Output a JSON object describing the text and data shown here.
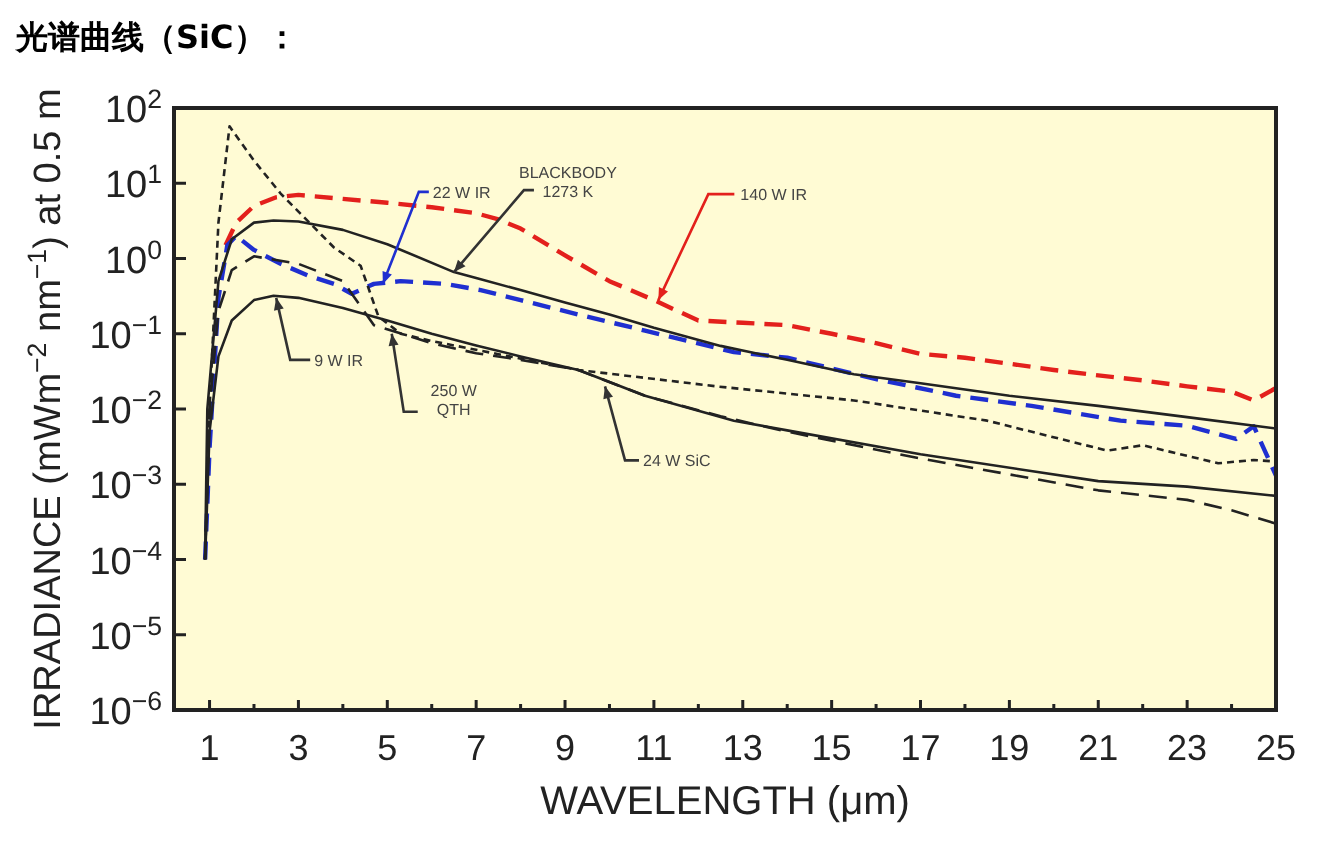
{
  "chart_data": {
    "type": "line",
    "title": "光谱曲线（SiC）：",
    "xlabel": "WAVELENGTH (μm)",
    "ylabel": "IRRADIANCE (mWm$^{−2}$ nm$^{−1}$) at 0.5 m",
    "log": "y",
    "xlim": [
      0.2,
      25
    ],
    "ylim": [
      1e-06,
      100
    ],
    "xticks": [
      1,
      {
        "value": 2,
        "label": null
      },
      3,
      {
        "value": 4,
        "label": null
      },
      5,
      {
        "value": 6,
        "label": null
      },
      7,
      {
        "value": 8,
        "label": null
      },
      9,
      {
        "value": 10,
        "label": null
      },
      11,
      {
        "value": 12,
        "label": null
      },
      13,
      {
        "value": 14,
        "label": null
      },
      15,
      {
        "value": 16,
        "label": null
      },
      17,
      {
        "value": 18,
        "label": null
      },
      19,
      {
        "value": 20,
        "label": null
      },
      21,
      {
        "value": 22,
        "label": null
      },
      23,
      {
        "value": 24,
        "label": null
      },
      25
    ],
    "yticks": [
      {
        "value": 1e-06,
        "label": "10$^{−6}$"
      },
      {
        "value": 1e-05,
        "label": "10$^{−5}$"
      },
      {
        "value": 0.0001,
        "label": "10$^{−4}$"
      },
      {
        "value": 0.001,
        "label": "10$^{−3}$"
      },
      {
        "value": 0.01,
        "label": "10$^{−2}$"
      },
      {
        "value": 0.1,
        "label": "10$^{−1}$"
      },
      {
        "value": 1,
        "label": "10$^{0}$"
      },
      {
        "value": 10,
        "label": "10$^{1}$"
      },
      {
        "value": 100,
        "label": "10$^{2}$"
      }
    ],
    "series": [
      {
        "color": "#e3201c",
        "line_style": "dashed",
        "x": [
          1.36,
          1.6,
          2,
          2.5,
          3,
          4,
          5,
          6,
          7,
          7.5,
          8,
          9,
          10,
          11,
          12,
          13,
          14,
          15,
          16,
          17,
          18,
          19,
          20,
          21,
          22,
          23,
          24,
          24.5,
          25
        ],
        "values": [
          1.5,
          3,
          5,
          6.5,
          7,
          6.2,
          5.5,
          4.8,
          4,
          3.3,
          2.5,
          1.1,
          0.5,
          0.28,
          0.15,
          0.14,
          0.13,
          0.1,
          0.075,
          0.054,
          0.048,
          0.04,
          0.033,
          0.028,
          0.024,
          0.02,
          0.017,
          0.013,
          0.019
        ]
      },
      {
        "color": "#1f2fd0",
        "line_style": "dashed",
        "x": [
          0.9,
          1.0,
          1.2,
          1.4,
          1.6,
          2,
          2.6,
          3.2,
          3.8,
          4.2,
          4.7,
          5.3,
          6.3,
          7.1,
          8,
          9.3,
          10.8,
          12.8,
          14,
          16,
          17.8,
          19.5,
          21.5,
          23,
          24.1,
          24.5,
          25
        ],
        "values": [
          0.0001,
          0.003,
          0.3,
          1.5,
          2,
          1.3,
          0.85,
          0.6,
          0.46,
          0.34,
          0.46,
          0.5,
          0.46,
          0.38,
          0.28,
          0.18,
          0.11,
          0.057,
          0.048,
          0.025,
          0.015,
          0.011,
          0.007,
          0.006,
          0.004,
          0.0059,
          0.0013
        ]
      },
      {
        "color": "#222222",
        "line_style": "solid",
        "x": [
          0.9,
          0.95,
          1.2,
          1.5,
          2,
          2.44,
          3,
          4,
          5,
          6.5,
          7,
          8,
          9,
          10,
          11,
          12.5,
          14,
          15.5,
          17,
          19,
          21,
          23,
          25
        ],
        "values": [
          0.0001,
          0.01,
          0.5,
          1.8,
          3,
          3.2,
          3.1,
          2.4,
          1.55,
          0.66,
          0.55,
          0.38,
          0.26,
          0.18,
          0.12,
          0.069,
          0.045,
          0.029,
          0.022,
          0.015,
          0.011,
          0.0078,
          0.0055
        ]
      },
      {
        "color": "#222222",
        "line_style": "solid",
        "x": [
          0.9,
          1.0,
          1.2,
          1.5,
          2,
          2.44,
          3,
          4,
          5,
          6,
          7,
          8,
          9.3,
          10.8,
          12.8,
          14,
          17,
          21,
          23,
          25
        ],
        "values": [
          0.0001,
          0.005,
          0.05,
          0.15,
          0.28,
          0.32,
          0.3,
          0.22,
          0.15,
          0.1,
          0.07,
          0.05,
          0.033,
          0.015,
          0.007,
          0.0052,
          0.0025,
          0.0011,
          0.00093,
          0.0007
        ]
      },
      {
        "color": "#222222",
        "line_style": "dotted",
        "x": [
          0.9,
          1.0,
          1.2,
          1.45,
          2,
          2.6,
          3.8,
          4.4,
          4.8,
          5.3,
          6,
          9.3,
          12.4,
          15.5,
          18.5,
          21.2,
          22,
          23.7,
          24.5,
          25
        ],
        "values": [
          0.0001,
          0.01,
          3,
          57,
          20,
          7.3,
          1.4,
          0.8,
          0.17,
          0.1,
          0.08,
          0.033,
          0.02,
          0.013,
          0.007,
          0.0028,
          0.0033,
          0.0019,
          0.0021,
          0.002
        ]
      },
      {
        "color": "#222222",
        "line_style": "dashed",
        "x": [
          0.9,
          1.0,
          1.2,
          1.5,
          2,
          3,
          4,
          4.7,
          6,
          7,
          8,
          9.3,
          10.8,
          12.5,
          14,
          17,
          21,
          23,
          24,
          25
        ],
        "values": [
          0.0001,
          0.01,
          0.2,
          0.7,
          1.07,
          0.85,
          0.5,
          0.13,
          0.075,
          0.055,
          0.045,
          0.033,
          0.015,
          0.008,
          0.005,
          0.0022,
          0.00083,
          0.00062,
          0.00045,
          0.0003
        ]
      }
    ],
    "annotations": [
      {
        "text": "140 W IR",
        "x": 11.1,
        "y": 0.28
      },
      {
        "text": "22 W IR",
        "x": 4.9,
        "y": 0.46
      },
      {
        "text": "BLACKBODY\n1273 K",
        "x": 6.5,
        "y": 0.66
      },
      {
        "text": "9 W IR",
        "x": 2.5,
        "y": 0.3
      },
      {
        "text": "250 W\nQTH",
        "x": 5.1,
        "y": 0.1
      },
      {
        "text": "24 W SiC",
        "x": 9.9,
        "y": 0.02
      }
    ]
  }
}
